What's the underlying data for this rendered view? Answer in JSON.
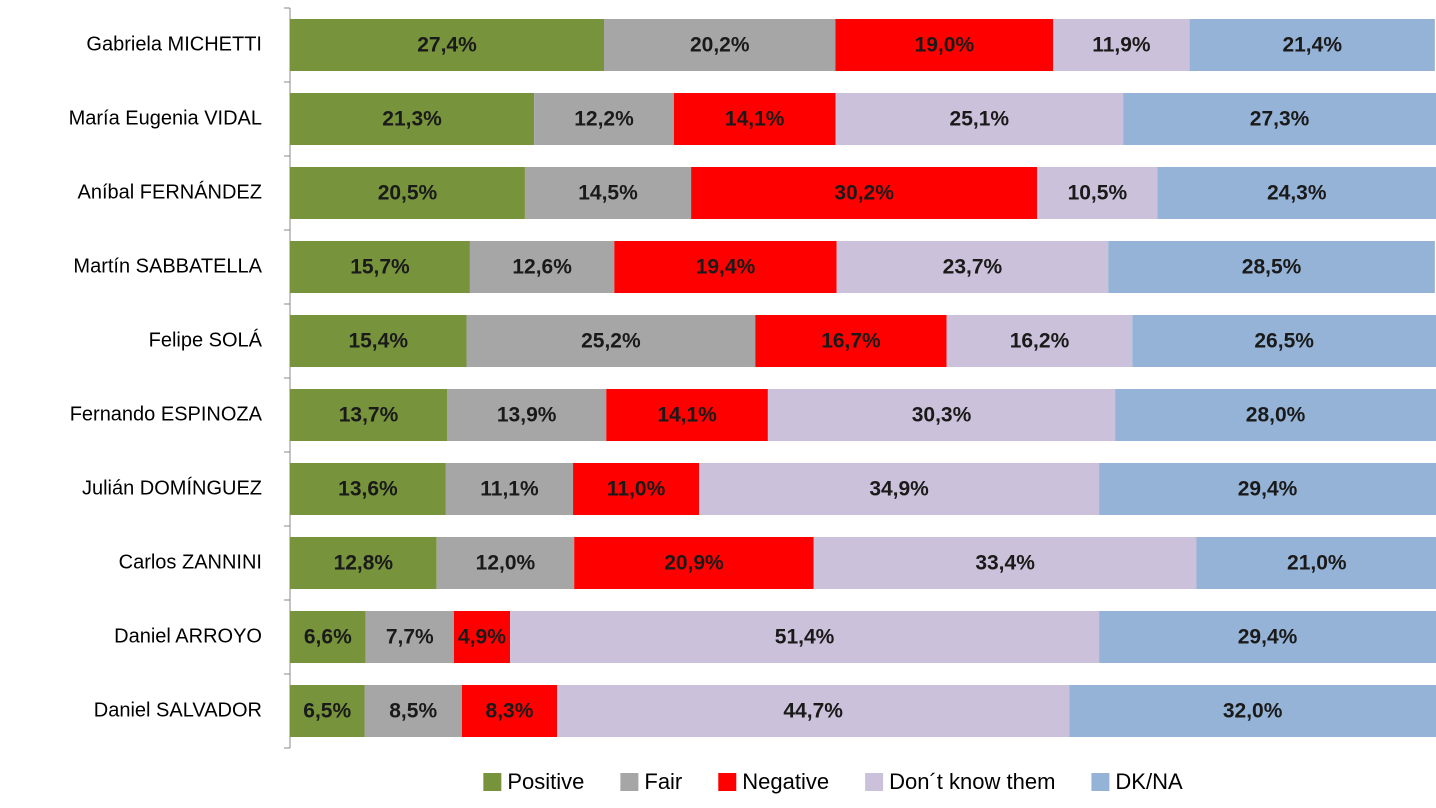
{
  "chart_data": {
    "type": "stacked-bar-horizontal",
    "categories": [
      "Gabriela MICHETTI",
      "María Eugenia VIDAL",
      "Aníbal FERNÁNDEZ",
      "Martín SABBATELLA",
      "Felipe SOLÁ",
      "Fernando ESPINOZA",
      "Julián DOMÍNGUEZ",
      "Carlos ZANNINI",
      "Daniel ARROYO",
      "Daniel SALVADOR"
    ],
    "xlim": [
      0,
      100
    ],
    "legend": "bottom",
    "series": [
      {
        "name": "Positive",
        "color": "#77933c",
        "values": [
          27.4,
          21.3,
          20.5,
          15.7,
          15.4,
          13.7,
          13.6,
          12.8,
          6.6,
          6.5
        ],
        "value_labels": [
          "27,4%",
          "21,3%",
          "20,5%",
          "15,7%",
          "15,4%",
          "13,7%",
          "13,6%",
          "12,8%",
          "6,6%",
          "6,5%"
        ]
      },
      {
        "name": "Fair",
        "color": "#a6a6a6",
        "values": [
          20.2,
          12.2,
          14.5,
          12.6,
          25.2,
          13.9,
          11.1,
          12.0,
          7.7,
          8.5
        ],
        "value_labels": [
          "20,2%",
          "12,2%",
          "14,5%",
          "12,6%",
          "25,2%",
          "13,9%",
          "11,1%",
          "12,0%",
          "7,7%",
          "8,5%"
        ]
      },
      {
        "name": "Negative",
        "color": "#ff0000",
        "values": [
          19.0,
          14.1,
          30.2,
          19.4,
          16.7,
          14.1,
          11.0,
          20.9,
          4.9,
          8.3
        ],
        "value_labels": [
          "19,0%",
          "14,1%",
          "30,2%",
          "19,4%",
          "16,7%",
          "14,1%",
          "11,0%",
          "20,9%",
          "4,9%",
          "8,3%"
        ]
      },
      {
        "name": "Don´t know them",
        "color": "#ccc1da",
        "values": [
          11.9,
          25.1,
          10.5,
          23.7,
          16.2,
          30.3,
          34.9,
          33.4,
          51.4,
          44.7
        ],
        "value_labels": [
          "11,9%",
          "25,1%",
          "10,5%",
          "23,7%",
          "16,2%",
          "30,3%",
          "34,9%",
          "33,4%",
          "51,4%",
          "44,7%"
        ]
      },
      {
        "name": "DK/NA",
        "color": "#95b3d7",
        "values": [
          21.4,
          27.3,
          24.3,
          28.5,
          26.5,
          28.0,
          29.4,
          21.0,
          29.4,
          32.0
        ],
        "value_labels": [
          "21,4%",
          "27,3%",
          "24,3%",
          "28,5%",
          "26,5%",
          "28,0%",
          "29,4%",
          "21,0%",
          "29,4%",
          "32,0%"
        ]
      }
    ]
  }
}
